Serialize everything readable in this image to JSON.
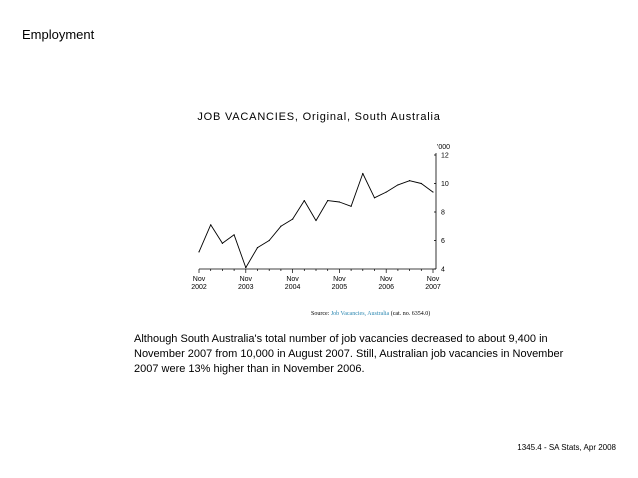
{
  "page": {
    "heading": "Employment",
    "commentary": "Although South Australia's total number of job vacancies decreased to about 9,400 in November 2007 from 10,000 in August 2007. Still, Australian job vacancies in November 2007 were 13% higher than in November 2006.",
    "footer": "1345.4 - SA Stats, Apr 2008"
  },
  "source": {
    "prefix": "Source:",
    "link_text": "Job Vacancies, Australia",
    "suffix": "(cat. no. 6354.0)",
    "link_color": "#2a86b0"
  },
  "chart_data": {
    "type": "line",
    "title": "JOB VACANCIES, Original, South Australia",
    "ylabel": "'000",
    "ylim": [
      4,
      12
    ],
    "yticks": [
      4,
      6,
      8,
      10,
      12
    ],
    "x_tick_labels": [
      {
        "month": "Nov",
        "year": "2002"
      },
      {
        "month": "Nov",
        "year": "2003"
      },
      {
        "month": "Nov",
        "year": "2004"
      },
      {
        "month": "Nov",
        "year": "2005"
      },
      {
        "month": "Nov",
        "year": "2006"
      },
      {
        "month": "Nov",
        "year": "2007"
      }
    ],
    "grid": false,
    "line_color": "#000000",
    "series": [
      {
        "x": [
          "2002-11",
          "2003-02",
          "2003-05",
          "2003-08",
          "2003-11",
          "2004-02",
          "2004-05",
          "2004-08",
          "2004-11",
          "2005-02",
          "2005-05",
          "2005-08",
          "2005-11",
          "2006-02",
          "2006-05",
          "2006-08",
          "2006-11",
          "2007-02",
          "2007-05",
          "2007-08",
          "2007-11"
        ],
        "values": [
          5.2,
          7.1,
          5.8,
          6.4,
          4.1,
          5.5,
          6.0,
          7.0,
          7.5,
          8.8,
          7.4,
          8.8,
          8.7,
          8.4,
          10.7,
          9.0,
          9.4,
          9.9,
          10.2,
          10.0,
          9.4
        ]
      }
    ]
  }
}
